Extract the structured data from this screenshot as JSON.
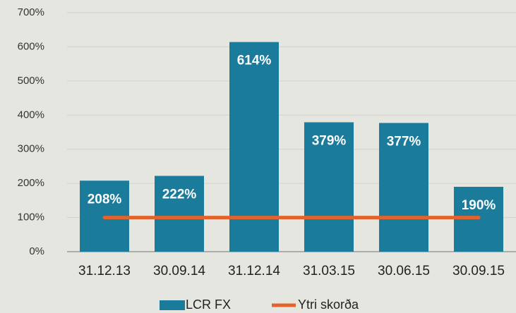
{
  "chart_data": {
    "type": "bar",
    "categories": [
      "31.12.13",
      "30.09.14",
      "31.12.14",
      "31.03.15",
      "30.06.15",
      "30.09.15"
    ],
    "series": [
      {
        "name": "LCR FX",
        "type": "bar",
        "color": "#1a7b9b",
        "values": [
          208,
          222,
          614,
          379,
          377,
          190
        ],
        "value_labels": [
          "208%",
          "222%",
          "614%",
          "379%",
          "377%",
          "190%"
        ]
      },
      {
        "name": "Ytri skorða",
        "type": "line",
        "color": "#e2632b",
        "values": [
          100,
          100,
          100,
          100,
          100,
          100
        ]
      }
    ],
    "ylim": [
      0,
      700
    ],
    "yticks": [
      {
        "value": 0,
        "label": "0%"
      },
      {
        "value": 100,
        "label": "100%"
      },
      {
        "value": 200,
        "label": "200%"
      },
      {
        "value": 300,
        "label": "300%"
      },
      {
        "value": 400,
        "label": "400%"
      },
      {
        "value": 500,
        "label": "500%"
      },
      {
        "value": 600,
        "label": "600%"
      },
      {
        "value": 700,
        "label": "700%"
      }
    ],
    "grid": true,
    "legend": "bottom"
  }
}
